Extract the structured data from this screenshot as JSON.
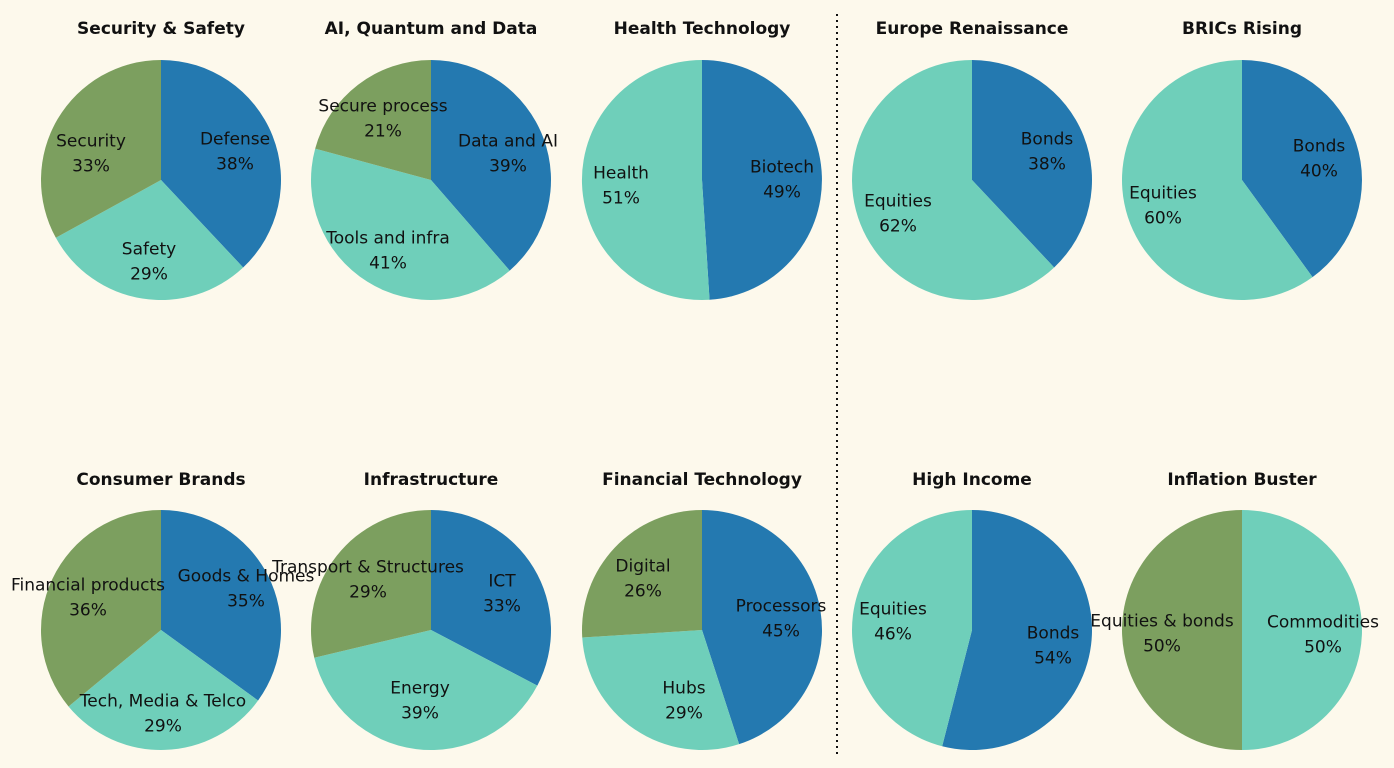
{
  "colors": {
    "background": "#fdf9ec",
    "dark_blue": "#2479b0",
    "teal": "#6fcfba",
    "green": "#7c9f5f",
    "text": "#111111",
    "divider": "#111111"
  },
  "chart_data": [
    {
      "id": "security-safety",
      "type": "pie",
      "title": "Security & Safety",
      "slices": [
        {
          "label": "Defense",
          "value": 38,
          "display": "38%",
          "color": "#2479b0"
        },
        {
          "label": "Safety",
          "value": 29,
          "display": "29%",
          "color": "#6fcfba"
        },
        {
          "label": "Security",
          "value": 33,
          "display": "33%",
          "color": "#7c9f5f"
        }
      ]
    },
    {
      "id": "ai-quantum-data",
      "type": "pie",
      "title": "AI, Quantum and Data",
      "slices": [
        {
          "label": "Data and AI",
          "value": 39,
          "display": "39%",
          "color": "#2479b0"
        },
        {
          "label": "Tools and infra",
          "value": 41,
          "display": "41%",
          "color": "#6fcfba"
        },
        {
          "label": "Secure process",
          "value": 21,
          "display": "21%",
          "color": "#7c9f5f"
        }
      ]
    },
    {
      "id": "health-technology",
      "type": "pie",
      "title": "Health Technology",
      "slices": [
        {
          "label": "Biotech",
          "value": 49,
          "display": "49%",
          "color": "#2479b0"
        },
        {
          "label": "Health",
          "value": 51,
          "display": "51%",
          "color": "#6fcfba"
        }
      ]
    },
    {
      "id": "europe-renaissance",
      "type": "pie",
      "title": "Europe Renaissance",
      "slices": [
        {
          "label": "Bonds",
          "value": 38,
          "display": "38%",
          "color": "#2479b0"
        },
        {
          "label": "Equities",
          "value": 62,
          "display": "62%",
          "color": "#6fcfba"
        }
      ]
    },
    {
      "id": "brics-rising",
      "type": "pie",
      "title": "BRICs Rising",
      "slices": [
        {
          "label": "Bonds",
          "value": 40,
          "display": "40%",
          "color": "#2479b0"
        },
        {
          "label": "Equities",
          "value": 60,
          "display": "60%",
          "color": "#6fcfba"
        }
      ]
    },
    {
      "id": "consumer-brands",
      "type": "pie",
      "title": "Consumer Brands",
      "slices": [
        {
          "label": "Goods & Homes",
          "value": 35,
          "display": "35%",
          "color": "#2479b0"
        },
        {
          "label": "Tech, Media & Telco",
          "value": 29,
          "display": "29%",
          "color": "#6fcfba"
        },
        {
          "label": "Financial products",
          "value": 36,
          "display": "36%",
          "color": "#7c9f5f"
        }
      ]
    },
    {
      "id": "infrastructure",
      "type": "pie",
      "title": "Infrastructure",
      "slices": [
        {
          "label": "ICT",
          "value": 33,
          "display": "33%",
          "color": "#2479b0"
        },
        {
          "label": "Energy",
          "value": 39,
          "display": "39%",
          "color": "#6fcfba"
        },
        {
          "label": "Transport & Structures",
          "value": 29,
          "display": "29%",
          "color": "#7c9f5f"
        }
      ]
    },
    {
      "id": "financial-technology",
      "type": "pie",
      "title": "Financial Technology",
      "slices": [
        {
          "label": "Processors",
          "value": 45,
          "display": "45%",
          "color": "#2479b0"
        },
        {
          "label": "Hubs",
          "value": 29,
          "display": "29%",
          "color": "#6fcfba"
        },
        {
          "label": "Digital",
          "value": 26,
          "display": "26%",
          "color": "#7c9f5f"
        }
      ]
    },
    {
      "id": "high-income",
      "type": "pie",
      "title": "High Income",
      "slices": [
        {
          "label": "Bonds",
          "value": 54,
          "display": "54%",
          "color": "#2479b0"
        },
        {
          "label": "Equities",
          "value": 46,
          "display": "46%",
          "color": "#6fcfba"
        }
      ]
    },
    {
      "id": "inflation-buster",
      "type": "pie",
      "title": "Inflation Buster",
      "slices": [
        {
          "label": "Commodities",
          "value": 50,
          "display": "50%",
          "color": "#6fcfba"
        },
        {
          "label": "Equities & bonds",
          "value": 50,
          "display": "50%",
          "color": "#7c9f5f"
        }
      ]
    }
  ]
}
